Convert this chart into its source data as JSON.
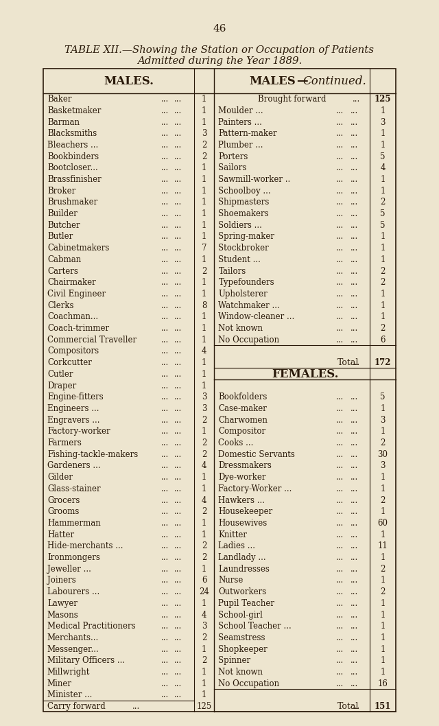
{
  "page_number": "46",
  "title_line1": "TABLE XII.—Showing the Station or Occupation of Patients",
  "title_line2": "Admitted during the Year 1889.",
  "bg_color": "#ede5cf",
  "text_color": "#2a1a0a",
  "col1_header": "MALES.",
  "col2_header": "MALES—Continued.",
  "males_left": [
    [
      "Baker",
      "...",
      "...",
      "...",
      "1"
    ],
    [
      "Basketmaker",
      "...",
      "...",
      "",
      "1"
    ],
    [
      "Barman",
      "...",
      "...",
      "...",
      "1"
    ],
    [
      "Blacksmiths",
      "...",
      "...",
      "",
      "3"
    ],
    [
      "Bleachers ...",
      "...",
      "...",
      "",
      "2"
    ],
    [
      "Bookbinders",
      "...",
      "...",
      "",
      "2"
    ],
    [
      "Bootcloser...",
      "...",
      "...",
      "",
      "1"
    ],
    [
      "Brassfinisher",
      "...",
      "...",
      "",
      "1"
    ],
    [
      "Broker",
      "...",
      "...",
      "...",
      "1"
    ],
    [
      "Brushmaker",
      "...",
      "...",
      "",
      "1"
    ],
    [
      "Builder",
      "...",
      "...",
      "...",
      "1"
    ],
    [
      "Butcher",
      "...",
      "...",
      "...",
      "1"
    ],
    [
      "Butler",
      "...",
      "...",
      "...",
      "1"
    ],
    [
      "Cabinetmakers",
      "...",
      "...",
      "",
      "7"
    ],
    [
      "Cabman",
      "...",
      "...",
      "...",
      "1"
    ],
    [
      "Carters",
      "...",
      "...",
      "...",
      "2"
    ],
    [
      "Chairmaker",
      "...",
      "...",
      "",
      "1"
    ],
    [
      "Civil Engineer",
      "...",
      "",
      "",
      "1"
    ],
    [
      "Clerks",
      "...",
      "...",
      "...",
      "8"
    ],
    [
      "Coachman...",
      "...",
      "...",
      "",
      "1"
    ],
    [
      "Coach-trimmer",
      "...",
      "...",
      "",
      "1"
    ],
    [
      "Commercial Traveller",
      "...",
      "",
      "",
      "1"
    ],
    [
      "Compositors",
      "...",
      "...",
      "",
      "4"
    ],
    [
      "Corkcutter",
      "...",
      "...",
      "",
      "1"
    ],
    [
      "Cutler",
      "...",
      "...",
      "...",
      "1"
    ],
    [
      "Draper",
      "...",
      "...",
      "...",
      "1"
    ],
    [
      "Engine-fitters",
      "...",
      "...",
      "",
      "3"
    ],
    [
      "Engineers ...",
      "...",
      "...",
      "",
      "3"
    ],
    [
      "Engravers ...",
      "...",
      "...",
      "",
      "2"
    ],
    [
      "Factory-worker",
      "...",
      "...",
      "",
      "1"
    ],
    [
      "Farmers",
      "...",
      "...",
      "...",
      "2"
    ],
    [
      "Fishing-tackle-makers",
      "...",
      "",
      "",
      "2"
    ],
    [
      "Gardeners ...",
      "...",
      "...",
      "",
      "4"
    ],
    [
      "Gilder",
      "...",
      "...",
      "...",
      "1"
    ],
    [
      "Glass-stainer",
      "...",
      "...",
      "",
      "1"
    ],
    [
      "Grocers",
      "...",
      "...",
      "...",
      "4"
    ],
    [
      "Grooms",
      "...",
      "...",
      "...",
      "2"
    ],
    [
      "Hammerman",
      "...",
      "...",
      "",
      "1"
    ],
    [
      "Hatter",
      "...",
      "...",
      "...",
      "1"
    ],
    [
      "Hide-merchants ...",
      "...",
      "",
      "",
      "2"
    ],
    [
      "Ironmongers",
      "...",
      "...",
      "",
      "2"
    ],
    [
      "Jeweller ...",
      "...",
      "...",
      "",
      "1"
    ],
    [
      "Joiners",
      "...",
      "...",
      "...",
      "6"
    ],
    [
      "Labourers ...",
      "...",
      "...",
      "",
      "24"
    ],
    [
      "Lawyer",
      "...",
      "...",
      "...",
      "1"
    ],
    [
      "Masons",
      "...",
      "...",
      "...",
      "4"
    ],
    [
      "Medical Practitioners",
      "...",
      "",
      "",
      "3"
    ],
    [
      "Merchants...",
      "...",
      "...",
      "",
      "2"
    ],
    [
      "Messenger...",
      "...",
      "...",
      "",
      "1"
    ],
    [
      "Military Officers ...",
      "...",
      "",
      "",
      "2"
    ],
    [
      "Millwright",
      "...",
      "...",
      "",
      "1"
    ],
    [
      "Miner",
      "...",
      "...",
      "...",
      "1"
    ],
    [
      "Minister ...",
      "...",
      "...",
      "",
      "1"
    ],
    [
      "Carry forward",
      "...",
      "",
      "",
      "125"
    ]
  ],
  "males_right": [
    [
      "Brought forward",
      "...",
      "",
      "125"
    ],
    [
      "Moulder ...",
      "...",
      "...",
      "1"
    ],
    [
      "Painters ...",
      "...",
      "...",
      "3"
    ],
    [
      "Pattern-maker",
      "...",
      "...",
      "1"
    ],
    [
      "Plumber ...",
      "...",
      "...",
      "1"
    ],
    [
      "Porters",
      "...",
      "...",
      "5"
    ],
    [
      "Sailors",
      "...",
      "...",
      "4"
    ],
    [
      "Sawmill-worker ..",
      "...",
      "",
      "1"
    ],
    [
      "Schoolboy ...",
      "...",
      "...",
      "1"
    ],
    [
      "Shipmasters",
      "...",
      "...",
      "2"
    ],
    [
      "Shoemakers",
      "...",
      "...",
      "5"
    ],
    [
      "Soldiers ...",
      "...",
      "...",
      "5"
    ],
    [
      "Spring-maker",
      "...",
      "...",
      "1"
    ],
    [
      "Stockbroker",
      "...",
      "...",
      "1"
    ],
    [
      "Student ...",
      "...",
      "...",
      "1"
    ],
    [
      "Tailors",
      "...",
      "...",
      "2"
    ],
    [
      "Typefounders",
      "...",
      "...",
      "2"
    ],
    [
      "Upholsterer",
      "...",
      "...",
      "1"
    ],
    [
      "Watchmaker ...",
      "...",
      "",
      "1"
    ],
    [
      "Window-cleaner ...",
      "...",
      "",
      "1"
    ],
    [
      "Not known",
      "...",
      "...",
      "2"
    ],
    [
      "No Occupation",
      "...",
      "...",
      "6"
    ],
    [
      "__TOTAL_LINE__",
      "",
      "",
      ""
    ],
    [
      "Total",
      "...",
      "",
      "172"
    ],
    [
      "__FEMALES_HEADER__",
      "",
      "",
      ""
    ],
    [
      "__FEMALES_LINE__",
      "",
      "",
      ""
    ],
    [
      "Bookfolders",
      "...",
      "...",
      "5"
    ],
    [
      "Case-maker",
      "...",
      "...",
      "1"
    ],
    [
      "Charwomen",
      "...",
      "...",
      "3"
    ],
    [
      "Compositor",
      "...",
      "...",
      "1"
    ],
    [
      "Cooks ...",
      "...",
      "...",
      "2"
    ],
    [
      "Domestic Servants",
      "...",
      "",
      "30"
    ],
    [
      "Dressmakers",
      "...",
      "...",
      "3"
    ],
    [
      "Dye-worker",
      "...",
      "...",
      "1"
    ],
    [
      "Factory-Worker ...",
      "...",
      "",
      "1"
    ],
    [
      "Hawkers ...",
      "...",
      "...",
      "2"
    ],
    [
      "Housekeeper",
      "...",
      "...",
      "1"
    ],
    [
      "Housewives",
      "...",
      "..",
      "60"
    ],
    [
      "Knitter",
      "...",
      "...",
      "1"
    ],
    [
      "Ladies ...",
      "...",
      "...",
      "11"
    ],
    [
      "Landlady ...",
      "...",
      "...",
      "1"
    ],
    [
      "Laundresses",
      "...",
      "...",
      "2"
    ],
    [
      "Nurse",
      "...",
      "...",
      "1"
    ],
    [
      "Outworkers",
      "...",
      "...",
      "2"
    ],
    [
      "Pupil Teacher",
      "...",
      "...",
      "1"
    ],
    [
      "School-girl",
      "...",
      "...",
      "1"
    ],
    [
      "School Teacher ...",
      "...",
      "",
      "1"
    ],
    [
      "Seamstress",
      "...",
      "...",
      "1"
    ],
    [
      "Shopkeeper",
      "...",
      "...",
      "1"
    ],
    [
      "Spinner",
      "...",
      "...",
      "1"
    ],
    [
      "Not known",
      "...",
      "...",
      "1"
    ],
    [
      "No Occupation",
      "...",
      "...",
      "16"
    ],
    [
      "__TOTAL2_LINE__",
      "",
      "",
      ""
    ],
    [
      "Total",
      "...",
      "",
      "151"
    ]
  ]
}
